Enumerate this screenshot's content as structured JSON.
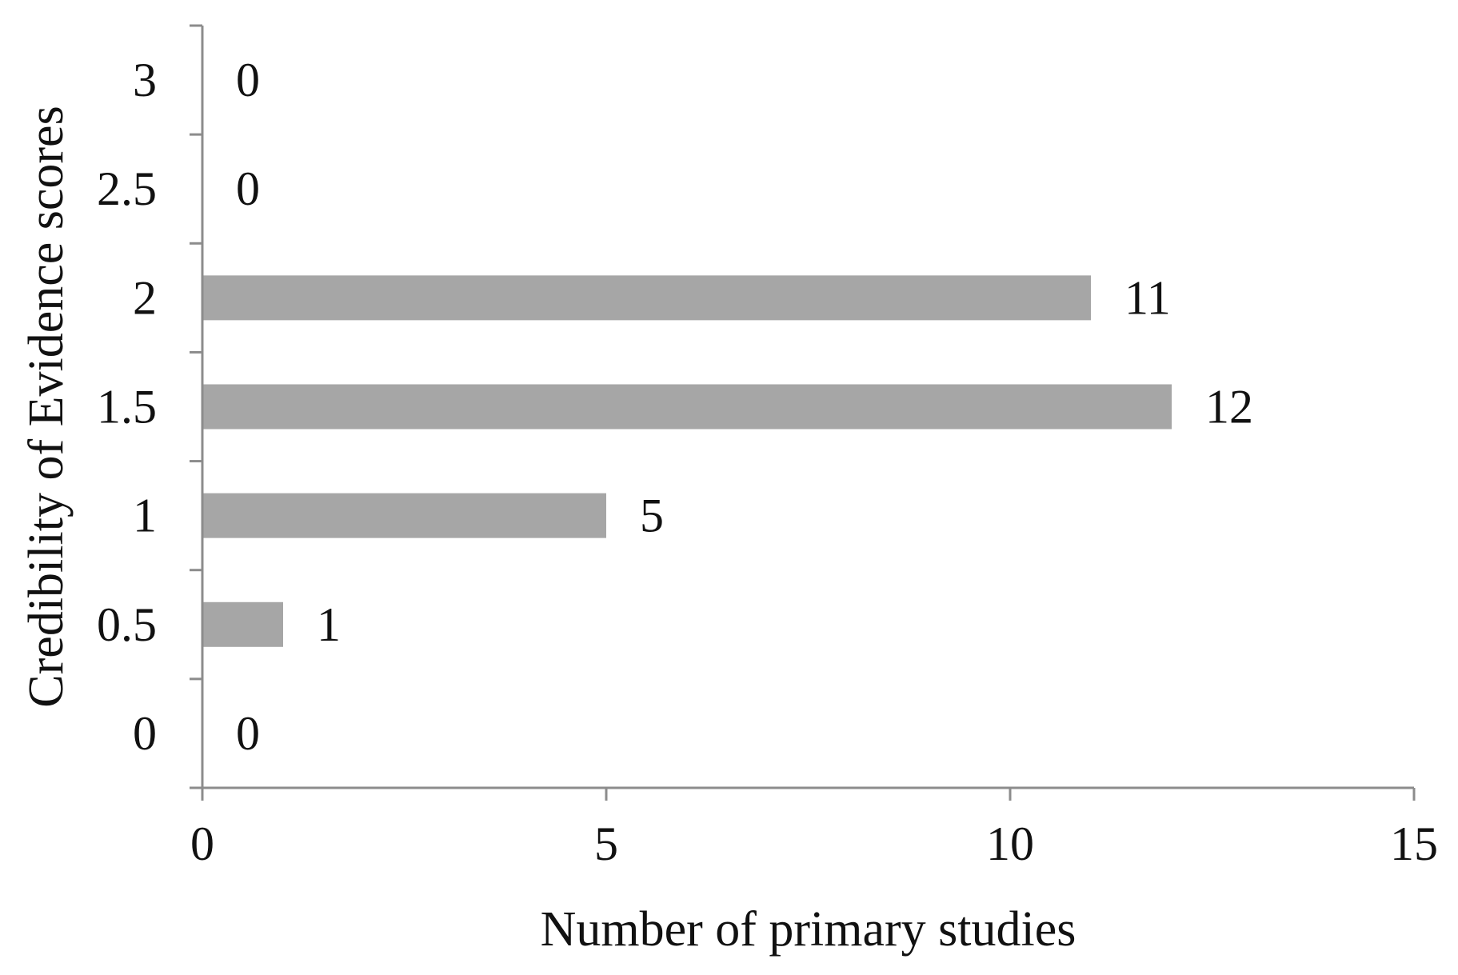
{
  "chart_data": {
    "type": "bar",
    "orientation": "horizontal",
    "title": "",
    "xlabel": "Number of primary studies",
    "ylabel": "Credibility of Evidence scores",
    "categories": [
      "3",
      "2.5",
      "2",
      "1.5",
      "1",
      "0.5",
      "0"
    ],
    "values": [
      0,
      0,
      11,
      12,
      5,
      1,
      0
    ],
    "data_labels": [
      "0",
      "0",
      "11",
      "12",
      "5",
      "1",
      "0"
    ],
    "x_ticks": [
      "0",
      "5",
      "10",
      "15"
    ],
    "xlim": [
      0,
      15
    ],
    "grid": false,
    "legend": "none",
    "colors": {
      "bar": "#a6a6a6",
      "axis": "#8c8c8c",
      "text": "#111111"
    }
  }
}
